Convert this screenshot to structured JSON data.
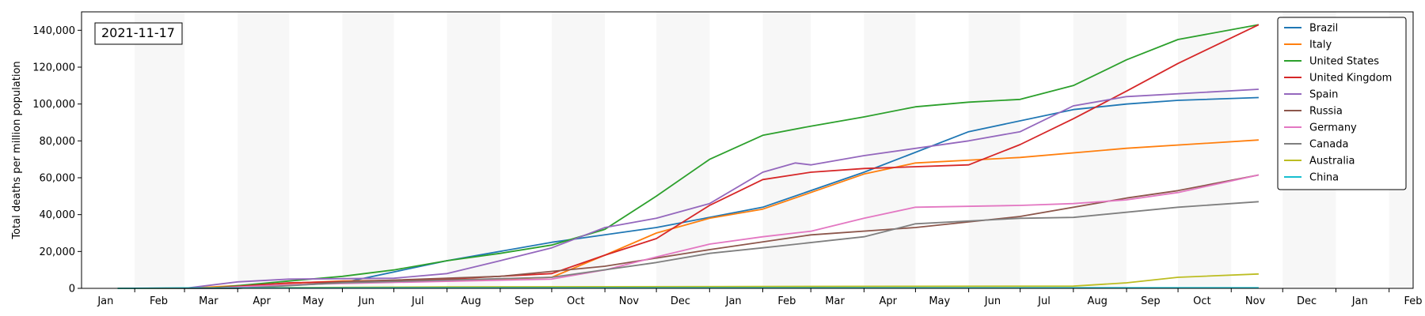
{
  "chart_data": {
    "type": "line",
    "date_label": "2021-11-17",
    "ylabel": "Total deaths per million population",
    "xlabel": "",
    "ylim": [
      0,
      150000
    ],
    "yticks": [
      0,
      20000,
      40000,
      60000,
      80000,
      100000,
      120000,
      140000
    ],
    "ytick_labels": [
      "0",
      "20,000",
      "40,000",
      "60,000",
      "80,000",
      "100,000",
      "120,000",
      "140,000"
    ],
    "xlim": [
      "2020-01-01",
      "2022-02-15"
    ],
    "month_ticks": [
      "Jan",
      "Feb",
      "Mar",
      "Apr",
      "May",
      "Jun",
      "Jul",
      "Aug",
      "Sep",
      "Oct",
      "Nov",
      "Dec",
      "Jan",
      "Feb",
      "Mar",
      "Apr",
      "May",
      "Jun",
      "Jul",
      "Aug",
      "Sep",
      "Oct",
      "Nov",
      "Dec",
      "Jan",
      "Feb"
    ],
    "month_tick_dates": [
      "2020-01-15",
      "2020-02-15",
      "2020-03-15",
      "2020-04-15",
      "2020-05-15",
      "2020-06-15",
      "2020-07-15",
      "2020-08-15",
      "2020-09-15",
      "2020-10-15",
      "2020-11-15",
      "2020-12-15",
      "2021-01-15",
      "2021-02-15",
      "2021-03-15",
      "2021-04-15",
      "2021-05-15",
      "2021-06-15",
      "2021-07-15",
      "2021-08-15",
      "2021-09-15",
      "2021-10-15",
      "2021-11-15",
      "2021-12-15",
      "2022-01-15",
      "2022-02-15"
    ],
    "shaded_months": [
      "2020-02",
      "2020-04",
      "2020-06",
      "2020-08",
      "2020-10",
      "2020-12",
      "2021-02",
      "2021-04",
      "2021-06",
      "2021-08",
      "2021-10",
      "2021-12",
      "2022-02"
    ],
    "grid": false,
    "legend_position": "top-right",
    "series": [
      {
        "name": "Brazil",
        "color": "#1f77b4",
        "dates": [
          "2020-01-22",
          "2020-04-01",
          "2020-06-01",
          "2020-08-01",
          "2020-10-01",
          "2020-12-01",
          "2021-02-01",
          "2021-04-01",
          "2021-06-01",
          "2021-08-01",
          "2021-09-01",
          "2021-10-01",
          "2021-11-17"
        ],
        "values": [
          0,
          200,
          3000,
          15000,
          25000,
          33000,
          44000,
          63000,
          85000,
          97000,
          100000,
          102000,
          103500
        ]
      },
      {
        "name": "Italy",
        "color": "#ff7f0e",
        "dates": [
          "2020-01-22",
          "2020-03-01",
          "2020-04-01",
          "2020-06-01",
          "2020-09-01",
          "2020-10-01",
          "2020-11-01",
          "2020-12-01",
          "2021-01-01",
          "2021-02-01",
          "2021-03-01",
          "2021-04-01",
          "2021-05-01",
          "2021-07-01",
          "2021-09-01",
          "2021-11-17"
        ],
        "values": [
          0,
          0,
          1500,
          4000,
          5000,
          6000,
          18000,
          30000,
          38000,
          43000,
          52000,
          62000,
          68000,
          71000,
          76000,
          80500
        ]
      },
      {
        "name": "United States",
        "color": "#2ca02c",
        "dates": [
          "2020-01-22",
          "2020-03-15",
          "2020-05-01",
          "2020-06-01",
          "2020-07-01",
          "2020-08-01",
          "2020-09-01",
          "2020-10-01",
          "2020-11-01",
          "2020-12-01",
          "2021-01-01",
          "2021-02-01",
          "2021-03-01",
          "2021-04-01",
          "2021-05-01",
          "2021-06-01",
          "2021-07-01",
          "2021-08-01",
          "2021-09-01",
          "2021-10-01",
          "2021-11-17"
        ],
        "values": [
          0,
          0,
          4000,
          6500,
          10000,
          15000,
          19000,
          23500,
          32000,
          50000,
          70000,
          83000,
          88000,
          93000,
          98500,
          101000,
          102500,
          110000,
          124000,
          135000,
          143000
        ]
      },
      {
        "name": "United Kingdom",
        "color": "#d62728",
        "dates": [
          "2020-01-22",
          "2020-03-15",
          "2020-05-01",
          "2020-08-01",
          "2020-10-01",
          "2020-11-01",
          "2020-12-01",
          "2021-01-01",
          "2021-02-01",
          "2021-03-01",
          "2021-04-01",
          "2021-06-01",
          "2021-07-01",
          "2021-08-01",
          "2021-09-01",
          "2021-10-01",
          "2021-11-17"
        ],
        "values": [
          0,
          0,
          3000,
          5000,
          8000,
          18000,
          27000,
          45000,
          59000,
          63000,
          65000,
          67000,
          78000,
          92000,
          107000,
          122000,
          143000
        ]
      },
      {
        "name": "Spain",
        "color": "#9467bd",
        "dates": [
          "2020-01-22",
          "2020-03-01",
          "2020-04-01",
          "2020-05-01",
          "2020-07-01",
          "2020-08-01",
          "2020-09-01",
          "2020-10-01",
          "2020-11-01",
          "2020-12-01",
          "2021-01-01",
          "2021-02-01",
          "2021-02-20",
          "2021-03-01",
          "2021-04-01",
          "2021-06-01",
          "2021-07-01",
          "2021-08-01",
          "2021-09-01",
          "2021-11-17"
        ],
        "values": [
          0,
          0,
          3500,
          5000,
          5500,
          8000,
          15000,
          22000,
          33000,
          38000,
          46000,
          63000,
          68000,
          67000,
          72000,
          80000,
          85000,
          99000,
          104000,
          108000
        ]
      },
      {
        "name": "Russia",
        "color": "#8c564b",
        "dates": [
          "2020-01-22",
          "2020-04-01",
          "2020-06-01",
          "2020-09-01",
          "2020-11-01",
          "2021-01-01",
          "2021-03-01",
          "2021-05-01",
          "2021-07-01",
          "2021-09-01",
          "2021-10-01",
          "2021-11-17"
        ],
        "values": [
          0,
          0,
          3500,
          6500,
          12000,
          21000,
          29000,
          33000,
          39000,
          49000,
          53000,
          61500
        ]
      },
      {
        "name": "Germany",
        "color": "#e377c2",
        "dates": [
          "2020-01-22",
          "2020-03-15",
          "2020-05-01",
          "2020-10-01",
          "2020-11-01",
          "2020-12-01",
          "2021-01-01",
          "2021-02-01",
          "2021-03-01",
          "2021-04-01",
          "2021-05-01",
          "2021-07-01",
          "2021-08-01",
          "2021-09-01",
          "2021-10-01",
          "2021-11-17"
        ],
        "values": [
          0,
          0,
          2000,
          5000,
          10000,
          17000,
          24000,
          28000,
          31000,
          38000,
          44000,
          45000,
          46000,
          48000,
          52000,
          61500
        ]
      },
      {
        "name": "Canada",
        "color": "#7f7f7f",
        "dates": [
          "2020-01-22",
          "2020-04-01",
          "2020-06-01",
          "2020-10-01",
          "2020-12-01",
          "2021-01-01",
          "2021-02-01",
          "2021-04-01",
          "2021-05-01",
          "2021-07-01",
          "2021-08-01",
          "2021-10-01",
          "2021-11-17"
        ],
        "values": [
          0,
          0,
          3000,
          6000,
          14000,
          19000,
          22000,
          28000,
          35000,
          38000,
          38500,
          44000,
          47000
        ]
      },
      {
        "name": "Australia",
        "color": "#bcbd22",
        "dates": [
          "2020-01-22",
          "2020-04-01",
          "2020-08-01",
          "2021-08-01",
          "2021-09-01",
          "2021-10-01",
          "2021-11-17"
        ],
        "values": [
          0,
          200,
          800,
          1200,
          3000,
          6000,
          7800
        ]
      },
      {
        "name": "China",
        "color": "#17becf",
        "dates": [
          "2020-01-22",
          "2020-03-01",
          "2021-11-17"
        ],
        "values": [
          0,
          200,
          300
        ]
      }
    ]
  }
}
